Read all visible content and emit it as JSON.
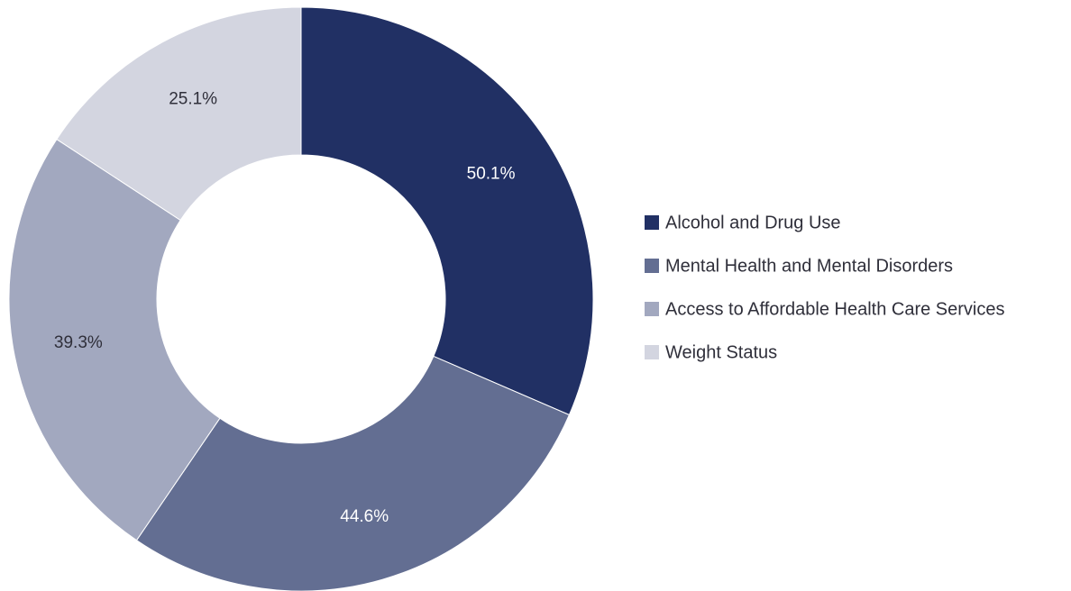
{
  "chart_data": {
    "type": "pie",
    "categories": [
      "Alcohol and Drug Use",
      "Mental Health and Mental Disorders",
      "Access to Affordable Health Care Services",
      "Weight Status"
    ],
    "values": [
      50.1,
      44.6,
      39.3,
      25.1
    ],
    "labels": [
      "50.1%",
      "44.6%",
      "39.3%",
      "25.1%"
    ],
    "colors": [
      "#213064",
      "#636e92",
      "#a2a8bf",
      "#d3d5e0"
    ],
    "label_colors": [
      "#ffffff",
      "#ffffff",
      "#2f2f3a",
      "#2f2f3a"
    ],
    "style": "donut",
    "legend_position": "right",
    "title": "",
    "xlabel": "",
    "ylabel": ""
  }
}
